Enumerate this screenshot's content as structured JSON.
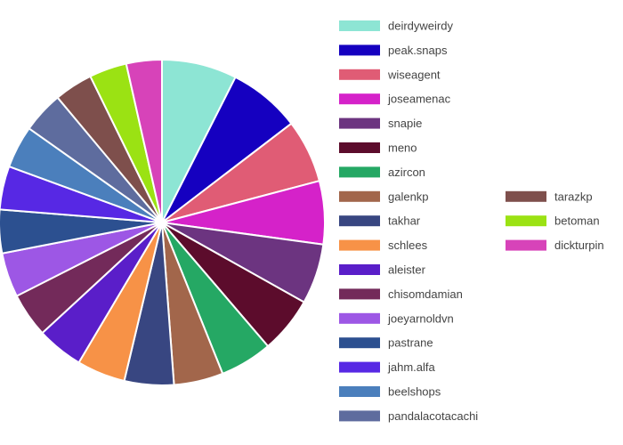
{
  "chart_data": {
    "type": "pie",
    "title": "",
    "legend_placement": "right",
    "slices": [
      {
        "label": "deirdyweirdy",
        "value": 7.6,
        "color": "#8de5d4"
      },
      {
        "label": "peak.snaps",
        "value": 7.3,
        "color": "#1500c0"
      },
      {
        "label": "wiseagent",
        "value": 6.4,
        "color": "#e05c75"
      },
      {
        "label": "joseamenac",
        "value": 6.4,
        "color": "#d522c9"
      },
      {
        "label": "snapie",
        "value": 6.1,
        "color": "#6c3480"
      },
      {
        "label": "meno",
        "value": 5.7,
        "color": "#5c0c2c"
      },
      {
        "label": "azircon",
        "value": 5.3,
        "color": "#25a864"
      },
      {
        "label": "galenkp",
        "value": 5.0,
        "color": "#a2664b"
      },
      {
        "label": "takhar",
        "value": 5.0,
        "color": "#384681"
      },
      {
        "label": "schlees",
        "value": 4.9,
        "color": "#f79247"
      },
      {
        "label": "aleister",
        "value": 4.7,
        "color": "#5a1ec9"
      },
      {
        "label": "chisomdamian",
        "value": 4.5,
        "color": "#732a5a"
      },
      {
        "label": "joeyarnoldvn",
        "value": 4.5,
        "color": "#9d57e5"
      },
      {
        "label": "pastrane",
        "value": 4.4,
        "color": "#2c5090"
      },
      {
        "label": "jahm.alfa",
        "value": 4.4,
        "color": "#5728e4"
      },
      {
        "label": "beelshops",
        "value": 4.3,
        "color": "#4b7fbc"
      },
      {
        "label": "pandalacotacachi",
        "value": 4.2,
        "color": "#5e6c9e"
      },
      {
        "label": "tarazkp",
        "value": 3.9,
        "color": "#7e4f4c"
      },
      {
        "label": "betoman",
        "value": 3.8,
        "color": "#9be213"
      },
      {
        "label": "dickturpin",
        "value": 3.6,
        "color": "#d743b9"
      }
    ]
  }
}
